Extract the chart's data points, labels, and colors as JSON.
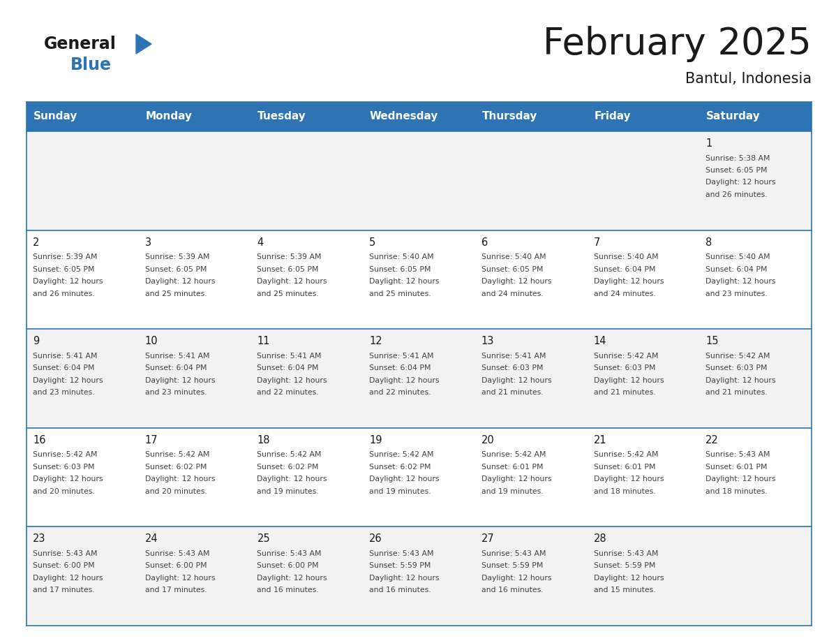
{
  "title": "February 2025",
  "subtitle": "Bantul, Indonesia",
  "header_bg": "#2E74B5",
  "header_text_color": "#FFFFFF",
  "row_bg_light": "#F2F2F2",
  "row_bg_white": "#FFFFFF",
  "border_color": "#2E74B5",
  "text_color": "#333333",
  "days_of_week": [
    "Sunday",
    "Monday",
    "Tuesday",
    "Wednesday",
    "Thursday",
    "Friday",
    "Saturday"
  ],
  "calendar_data": [
    [
      null,
      null,
      null,
      null,
      null,
      null,
      {
        "day": 1,
        "sunrise": "5:38 AM",
        "sunset": "6:05 PM",
        "daylight": "12 hours and 26 minutes"
      }
    ],
    [
      {
        "day": 2,
        "sunrise": "5:39 AM",
        "sunset": "6:05 PM",
        "daylight": "12 hours and 26 minutes"
      },
      {
        "day": 3,
        "sunrise": "5:39 AM",
        "sunset": "6:05 PM",
        "daylight": "12 hours and 25 minutes"
      },
      {
        "day": 4,
        "sunrise": "5:39 AM",
        "sunset": "6:05 PM",
        "daylight": "12 hours and 25 minutes"
      },
      {
        "day": 5,
        "sunrise": "5:40 AM",
        "sunset": "6:05 PM",
        "daylight": "12 hours and 25 minutes"
      },
      {
        "day": 6,
        "sunrise": "5:40 AM",
        "sunset": "6:05 PM",
        "daylight": "12 hours and 24 minutes"
      },
      {
        "day": 7,
        "sunrise": "5:40 AM",
        "sunset": "6:04 PM",
        "daylight": "12 hours and 24 minutes"
      },
      {
        "day": 8,
        "sunrise": "5:40 AM",
        "sunset": "6:04 PM",
        "daylight": "12 hours and 23 minutes"
      }
    ],
    [
      {
        "day": 9,
        "sunrise": "5:41 AM",
        "sunset": "6:04 PM",
        "daylight": "12 hours and 23 minutes"
      },
      {
        "day": 10,
        "sunrise": "5:41 AM",
        "sunset": "6:04 PM",
        "daylight": "12 hours and 23 minutes"
      },
      {
        "day": 11,
        "sunrise": "5:41 AM",
        "sunset": "6:04 PM",
        "daylight": "12 hours and 22 minutes"
      },
      {
        "day": 12,
        "sunrise": "5:41 AM",
        "sunset": "6:04 PM",
        "daylight": "12 hours and 22 minutes"
      },
      {
        "day": 13,
        "sunrise": "5:41 AM",
        "sunset": "6:03 PM",
        "daylight": "12 hours and 21 minutes"
      },
      {
        "day": 14,
        "sunrise": "5:42 AM",
        "sunset": "6:03 PM",
        "daylight": "12 hours and 21 minutes"
      },
      {
        "day": 15,
        "sunrise": "5:42 AM",
        "sunset": "6:03 PM",
        "daylight": "12 hours and 21 minutes"
      }
    ],
    [
      {
        "day": 16,
        "sunrise": "5:42 AM",
        "sunset": "6:03 PM",
        "daylight": "12 hours and 20 minutes"
      },
      {
        "day": 17,
        "sunrise": "5:42 AM",
        "sunset": "6:02 PM",
        "daylight": "12 hours and 20 minutes"
      },
      {
        "day": 18,
        "sunrise": "5:42 AM",
        "sunset": "6:02 PM",
        "daylight": "12 hours and 19 minutes"
      },
      {
        "day": 19,
        "sunrise": "5:42 AM",
        "sunset": "6:02 PM",
        "daylight": "12 hours and 19 minutes"
      },
      {
        "day": 20,
        "sunrise": "5:42 AM",
        "sunset": "6:01 PM",
        "daylight": "12 hours and 19 minutes"
      },
      {
        "day": 21,
        "sunrise": "5:42 AM",
        "sunset": "6:01 PM",
        "daylight": "12 hours and 18 minutes"
      },
      {
        "day": 22,
        "sunrise": "5:43 AM",
        "sunset": "6:01 PM",
        "daylight": "12 hours and 18 minutes"
      }
    ],
    [
      {
        "day": 23,
        "sunrise": "5:43 AM",
        "sunset": "6:00 PM",
        "daylight": "12 hours and 17 minutes"
      },
      {
        "day": 24,
        "sunrise": "5:43 AM",
        "sunset": "6:00 PM",
        "daylight": "12 hours and 17 minutes"
      },
      {
        "day": 25,
        "sunrise": "5:43 AM",
        "sunset": "6:00 PM",
        "daylight": "12 hours and 16 minutes"
      },
      {
        "day": 26,
        "sunrise": "5:43 AM",
        "sunset": "5:59 PM",
        "daylight": "12 hours and 16 minutes"
      },
      {
        "day": 27,
        "sunrise": "5:43 AM",
        "sunset": "5:59 PM",
        "daylight": "12 hours and 16 minutes"
      },
      {
        "day": 28,
        "sunrise": "5:43 AM",
        "sunset": "5:59 PM",
        "daylight": "12 hours and 15 minutes"
      },
      null
    ]
  ],
  "n_cols": 7,
  "n_rows": 5,
  "logo_text_general": "General",
  "logo_text_blue": "Blue",
  "fig_width": 11.88,
  "fig_height": 9.18,
  "dpi": 100
}
